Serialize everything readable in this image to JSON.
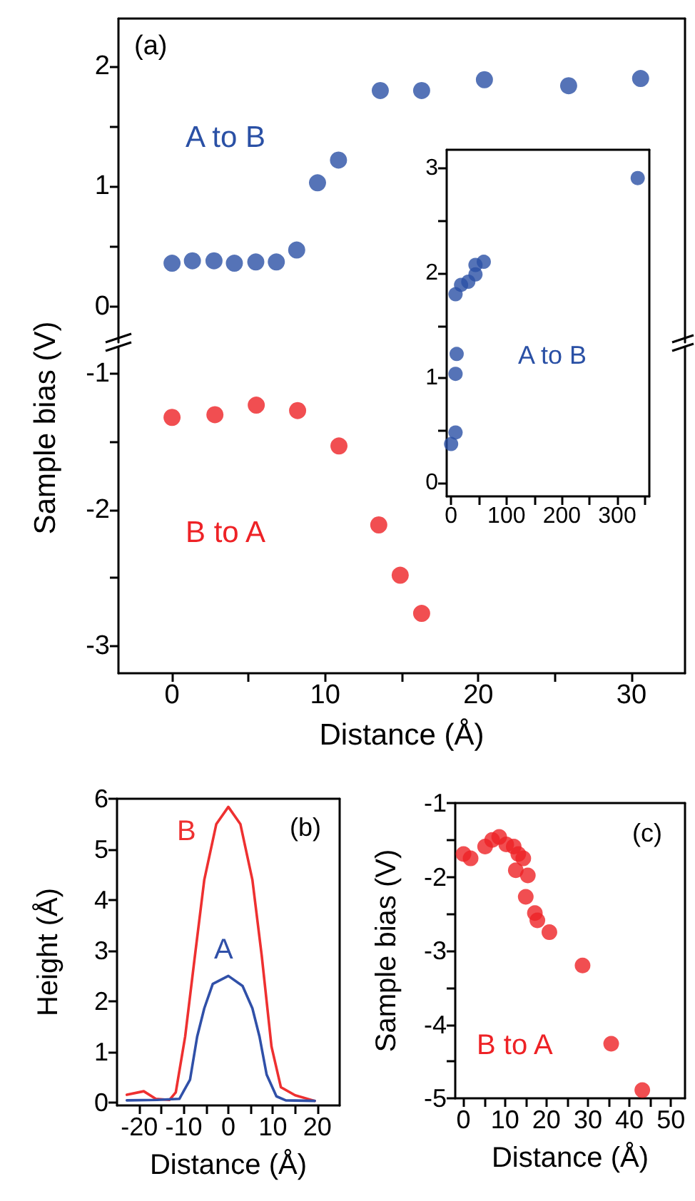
{
  "chart_data": [
    {
      "type": "scatter",
      "xlim": [
        -3.5,
        33.5
      ],
      "ylim": [
        -0.3,
        2.4
      ],
      "yticks": [
        0,
        {
          "value": 0.5,
          "label": null
        },
        1,
        {
          "value": 1.5,
          "label": null
        },
        2
      ],
      "tick_labels": "y",
      "marker": "circle",
      "annotations": [
        "(a)"
      ],
      "series": [
        {
          "name": "A to B",
          "color": "#2a50a5",
          "x": [
            0,
            1.33,
            2.74,
            4.07,
            5.47,
            6.81,
            8.14,
            9.5,
            10.87,
            13.6,
            16.3,
            20.4,
            25.9,
            30.6
          ],
          "values": [
            0.36,
            0.38,
            0.38,
            0.36,
            0.37,
            0.37,
            0.47,
            1.03,
            1.22,
            1.8,
            1.8,
            1.89,
            1.84,
            1.9
          ]
        }
      ]
    },
    {
      "type": "scatter",
      "xlabel": "Distance (Å)",
      "ylabel": "Sample bias (V)",
      "xlim": [
        -3.5,
        33.5
      ],
      "xticks": [
        0,
        {
          "value": 5,
          "label": null
        },
        10,
        {
          "value": 15,
          "label": null
        },
        20,
        {
          "value": 25,
          "label": null
        },
        30
      ],
      "ylim": [
        -3.2,
        -0.8
      ],
      "yticks": [
        -1,
        {
          "value": -1.5,
          "label": null
        },
        -2,
        {
          "value": -2.5,
          "label": null
        },
        -3
      ],
      "marker": "circle",
      "series": [
        {
          "name": "B to A",
          "color": "#ee2226",
          "x": [
            0,
            2.8,
            5.5,
            8.2,
            10.9,
            13.5,
            14.9,
            16.3
          ],
          "values": [
            -1.32,
            -1.3,
            -1.23,
            -1.27,
            -1.53,
            -2.11,
            -2.48,
            -2.76
          ]
        }
      ]
    },
    {
      "type": "scatter",
      "xlim": [
        -8,
        358
      ],
      "xticks": [
        0,
        {
          "value": 50,
          "label": null
        },
        100,
        {
          "value": 150,
          "label": null
        },
        200,
        {
          "value": 250,
          "label": null
        },
        300,
        {
          "value": 350,
          "label": null
        }
      ],
      "ylim": [
        -0.13,
        3.18
      ],
      "yticks": [
        0,
        {
          "value": 0.5,
          "label": null
        },
        1,
        {
          "value": 1.5,
          "label": null
        },
        2,
        {
          "value": 2.5,
          "label": null
        },
        3
      ],
      "marker": "circle",
      "series": [
        {
          "name": "A to B",
          "color": "#2a50a5",
          "x": [
            0,
            8,
            8,
            10,
            8,
            18,
            31,
            44,
            44,
            59,
            337
          ],
          "values": [
            0.37,
            0.48,
            1.04,
            1.23,
            1.8,
            1.89,
            1.92,
            1.99,
            2.08,
            2.11,
            2.91
          ]
        }
      ]
    },
    {
      "type": "line",
      "xlabel": "Distance (Å)",
      "ylabel": "Height (Å)",
      "xlim": [
        -25,
        25
      ],
      "xticks": [
        -20,
        {
          "value": -15,
          "label": null
        },
        -10,
        {
          "value": -5,
          "label": null
        },
        0,
        {
          "value": 5,
          "label": null
        },
        10,
        {
          "value": 15,
          "label": null
        },
        20
      ],
      "ylim": [
        -0.06,
        6
      ],
      "yticks": [
        0,
        1,
        2,
        3,
        4,
        5,
        6
      ],
      "marker": "none",
      "line_style": "solid",
      "annotations": [
        "(b)"
      ],
      "series": [
        {
          "name": "B",
          "color": "#ee3030",
          "x": [
            -22.8,
            -19,
            -16.3,
            -13.2,
            -11.8,
            -9.7,
            -7.5,
            -5.4,
            -2.7,
            0,
            2.7,
            5.4,
            7.5,
            9.7,
            11.8,
            15,
            19.4
          ],
          "values": [
            0.15,
            0.22,
            0.07,
            0.05,
            0.2,
            1.3,
            2.9,
            4.4,
            5.5,
            5.84,
            5.5,
            4.4,
            2.9,
            1.1,
            0.3,
            0.14,
            0.03
          ]
        },
        {
          "name": "A",
          "color": "#3050a8",
          "x": [
            -22.8,
            -16,
            -11,
            -8.6,
            -7,
            -5.4,
            -3.5,
            0,
            3.2,
            5.4,
            7,
            8.6,
            10.8,
            12.9,
            19.4
          ],
          "values": [
            0.04,
            0.05,
            0.07,
            0.45,
            1.3,
            1.86,
            2.34,
            2.5,
            2.3,
            1.86,
            1.3,
            0.55,
            0.12,
            0.04,
            0.03
          ]
        }
      ]
    },
    {
      "type": "scatter",
      "xlabel": "Distance (Å)",
      "ylabel": "Sample bias (V)",
      "xlim": [
        -2,
        53.4
      ],
      "xticks": [
        0,
        {
          "value": 5,
          "label": null
        },
        10,
        {
          "value": 15,
          "label": null
        },
        20,
        {
          "value": 25,
          "label": null
        },
        30,
        {
          "value": 35,
          "label": null
        },
        40,
        {
          "value": 45,
          "label": null
        },
        50
      ],
      "ylim": [
        -5,
        -1
      ],
      "yticks": [
        -1,
        {
          "value": -1.5,
          "label": null
        },
        -2,
        {
          "value": -2.5,
          "label": null
        },
        -3,
        {
          "value": -3.5,
          "label": null
        },
        -4,
        {
          "value": -4.5,
          "label": null
        },
        -5
      ],
      "marker": "circle",
      "annotations": [
        "(c)"
      ],
      "series": [
        {
          "name": "B to A",
          "color": "#ee2226",
          "x": [
            0,
            1.7,
            5.2,
            6.9,
            8.6,
            10.3,
            12.1,
            13.2,
            12.6,
            14.4,
            15.5,
            15,
            17.2,
            17.8,
            20.7,
            28.7,
            35.6,
            43.1
          ],
          "values": [
            -1.69,
            -1.75,
            -1.59,
            -1.5,
            -1.46,
            -1.56,
            -1.59,
            -1.69,
            -1.91,
            -1.75,
            -1.98,
            -2.27,
            -2.49,
            -2.59,
            -2.75,
            -3.2,
            -4.26,
            -4.89
          ]
        }
      ]
    }
  ]
}
